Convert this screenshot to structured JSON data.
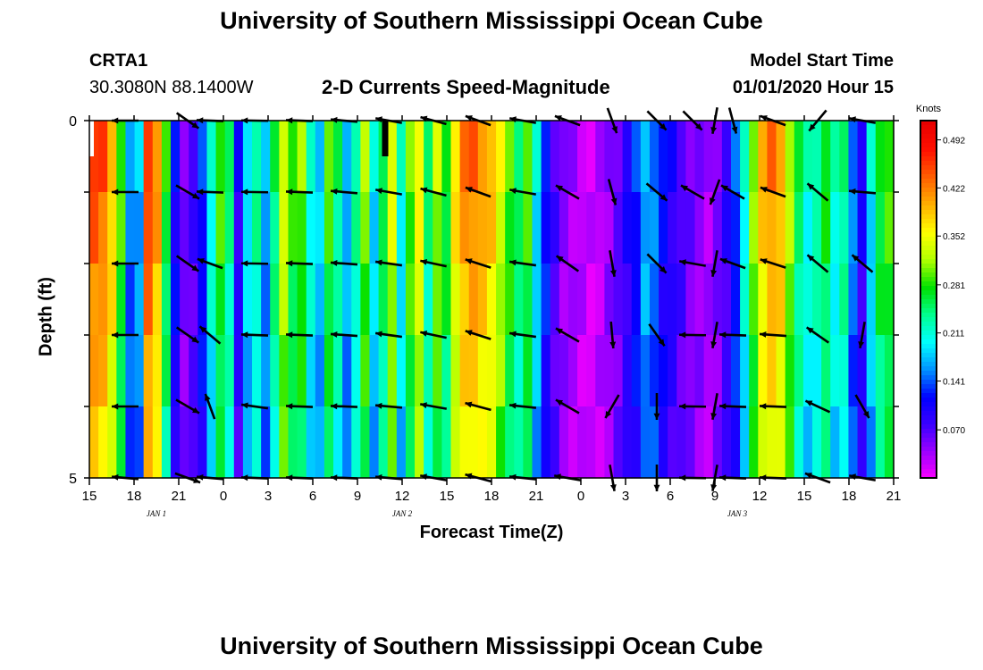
{
  "header": {
    "title": "University of Southern Mississippi Ocean Cube",
    "station": "CRTA1",
    "coords": "30.3080N 88.1400W",
    "subtitle": "2-D Currents Speed-Magnitude",
    "model_label": "Model Start Time",
    "model_time": "01/01/2020 Hour 15"
  },
  "footer": {
    "title": "University of Southern Mississippi Ocean Cube"
  },
  "chart_data": {
    "type": "heatmap",
    "xlabel": "Forecast Time(Z)",
    "ylabel": "Depth (ft)",
    "x_ticks": [
      "15",
      "18",
      "21",
      "0",
      "3",
      "6",
      "9",
      "12",
      "15",
      "18",
      "21",
      "0",
      "3",
      "6",
      "9",
      "12",
      "15",
      "18",
      "21"
    ],
    "date_labels": [
      {
        "label": "JAN 1",
        "at_tick": 1.5
      },
      {
        "label": "JAN 2",
        "at_tick": 7
      },
      {
        "label": "JAN 3",
        "at_tick": 14.5
      }
    ],
    "y_ticks": [
      "0",
      "5"
    ],
    "ylim": [
      0,
      5
    ],
    "colorbar": {
      "unit": "Knots",
      "ticks": [
        "0.492",
        "0.422",
        "0.352",
        "0.281",
        "0.211",
        "0.141",
        "0.070"
      ],
      "range": [
        0.0,
        0.52
      ],
      "colors": [
        "#ff00ff",
        "#a000ff",
        "#3c00ff",
        "#0000ff",
        "#0090ff",
        "#00ffff",
        "#00ff90",
        "#00e000",
        "#b0ff00",
        "#ffff00",
        "#ffb000",
        "#ff6000",
        "#ff1000",
        "#e80000"
      ]
    },
    "speed_profile_knots": [
      0.46,
      0.45,
      0.4,
      0.3,
      0.16,
      0.18,
      0.47,
      0.42,
      0.28,
      0.12,
      0.06,
      0.08,
      0.13,
      0.22,
      0.3,
      0.25,
      0.1,
      0.2,
      0.24,
      0.17,
      0.26,
      0.35,
      0.29,
      0.31,
      0.22,
      0.19,
      0.3,
      0.25,
      0.18,
      0.24,
      0.32,
      0.2,
      0.27,
      0.35,
      0.21,
      0.31,
      0.37,
      0.25,
      0.33,
      0.28,
      0.38,
      0.43,
      0.44,
      0.42,
      0.4,
      0.35,
      0.3,
      0.26,
      0.3,
      0.2,
      0.13,
      0.08,
      0.05,
      0.04,
      0.03,
      0.02,
      0.03,
      0.05,
      0.07,
      0.1,
      0.13,
      0.18,
      0.16,
      0.12,
      0.1,
      0.08,
      0.06,
      0.05,
      0.04,
      0.06,
      0.09,
      0.14,
      0.22,
      0.32,
      0.4,
      0.43,
      0.41,
      0.33,
      0.26,
      0.22,
      0.24,
      0.28,
      0.22,
      0.25,
      0.16,
      0.1,
      0.2,
      0.28,
      0.3
    ],
    "arrow_columns": [
      {
        "t": 0.8,
        "dirs": [
          180,
          180,
          180,
          180,
          180,
          175
        ]
      },
      {
        "t": 2.2,
        "dirs": [
          -35,
          -30,
          -35,
          -35,
          -30,
          -20
        ]
      },
      {
        "t": 2.7,
        "dirs": [
          178,
          178,
          160,
          140,
          110,
          175
        ]
      },
      {
        "t": 3.7,
        "dirs": [
          179,
          179,
          179,
          178,
          172,
          178
        ]
      },
      {
        "t": 4.7,
        "dirs": [
          178,
          178,
          178,
          178,
          178,
          178
        ]
      },
      {
        "t": 5.7,
        "dirs": [
          175,
          175,
          176,
          176,
          178,
          178
        ]
      },
      {
        "t": 6.7,
        "dirs": [
          170,
          170,
          172,
          172,
          175,
          175
        ]
      },
      {
        "t": 7.7,
        "dirs": [
          165,
          165,
          168,
          168,
          170,
          170
        ]
      },
      {
        "t": 8.7,
        "dirs": [
          160,
          160,
          162,
          162,
          165,
          165
        ]
      },
      {
        "t": 9.7,
        "dirs": [
          170,
          170,
          172,
          172,
          174,
          174
        ]
      },
      {
        "t": 10.7,
        "dirs": [
          160,
          150,
          145,
          150,
          150,
          170
        ]
      },
      {
        "t": 11.7,
        "dirs": [
          -70,
          -75,
          -80,
          -85,
          -120,
          -80
        ]
      },
      {
        "t": 12.7,
        "dirs": [
          -45,
          -40,
          -45,
          -55,
          -90,
          -90
        ]
      },
      {
        "t": 13.5,
        "dirs": [
          -45,
          150,
          170,
          179,
          179,
          179
        ]
      },
      {
        "t": 14.0,
        "dirs": [
          -100,
          -110,
          -100,
          -100,
          -100,
          -100
        ]
      },
      {
        "t": 14.4,
        "dirs": [
          -75,
          150,
          160,
          178,
          178,
          178
        ]
      },
      {
        "t": 15.3,
        "dirs": [
          160,
          160,
          162,
          176,
          178,
          178
        ]
      },
      {
        "t": 16.3,
        "dirs": [
          -130,
          140,
          140,
          145,
          155,
          160
        ]
      },
      {
        "t": 17.3,
        "dirs": [
          170,
          175,
          140,
          -100,
          -60,
          170
        ]
      }
    ]
  }
}
